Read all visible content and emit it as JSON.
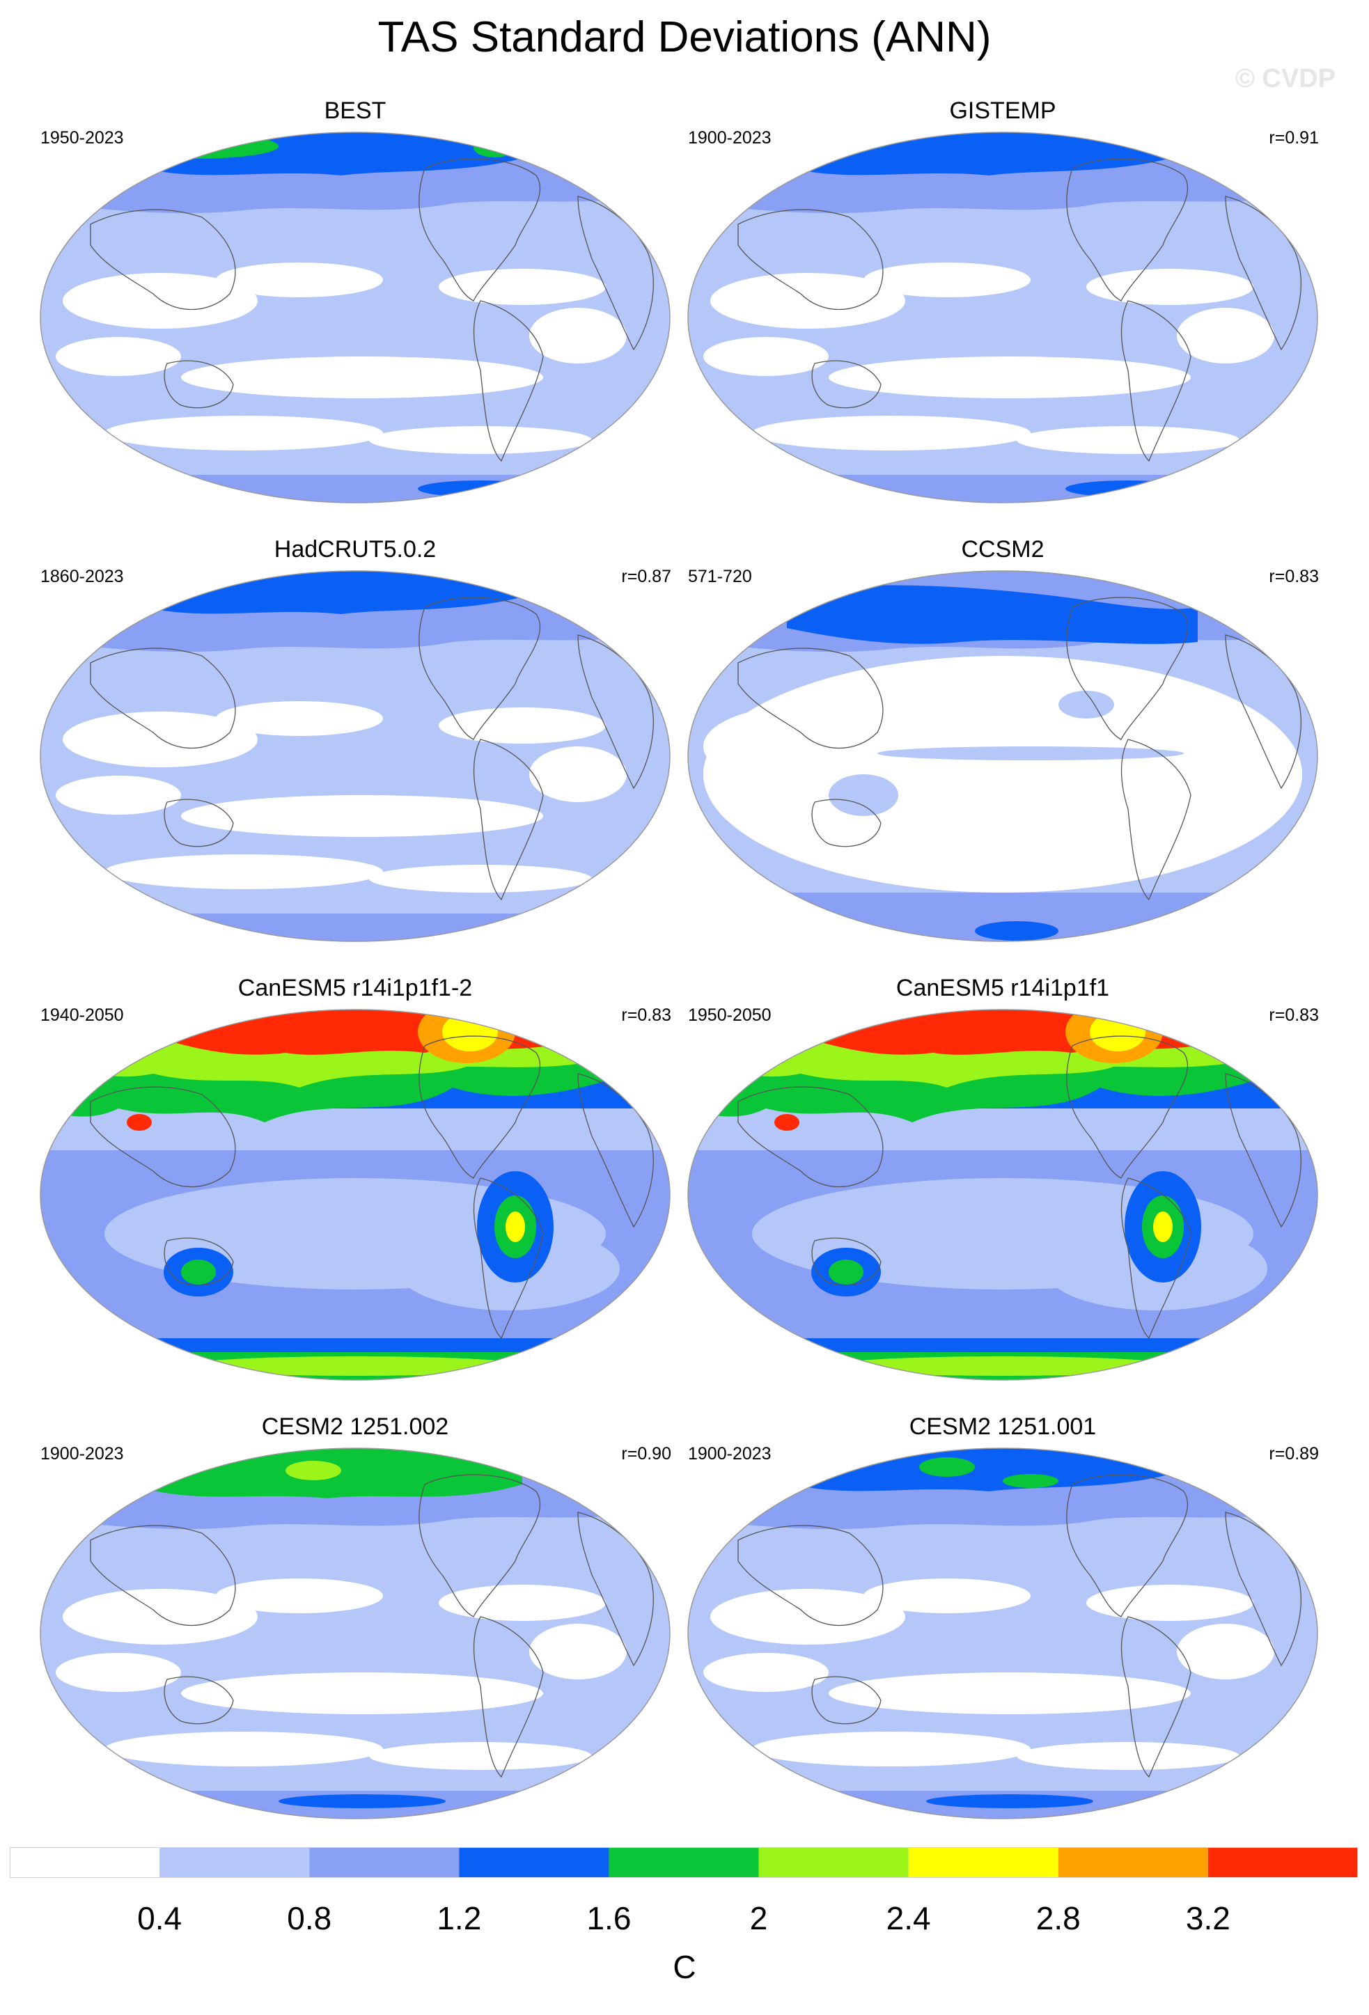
{
  "title": "TAS Standard Deviations (ANN)",
  "watermark": "© CVDP",
  "colors": {
    "levels": [
      "#ffffff",
      "#b4c7f8",
      "#8aa0f4",
      "#0a60f5",
      "#09c537",
      "#9cf51a",
      "#ffff00",
      "#ffa100",
      "#ff2a05"
    ],
    "land_outline": "#555555",
    "map_border": "#999999"
  },
  "colorbar": {
    "labels": [
      "0.4",
      "0.8",
      "1.2",
      "1.6",
      "2",
      "2.4",
      "2.8",
      "3.2"
    ],
    "units": "C"
  },
  "panels": [
    {
      "title": "BEST",
      "years": "1950-2023",
      "r": "",
      "pattern": "obs"
    },
    {
      "title": "GISTEMP",
      "years": "1900-2023",
      "r": "r=0.91",
      "pattern": "obs2"
    },
    {
      "title": "HadCRUT5.0.2",
      "years": "1860-2023",
      "r": "r=0.87",
      "pattern": "obs3"
    },
    {
      "title": "CCSM2",
      "years": "571-720",
      "r": "r=0.83",
      "pattern": "ccsm"
    },
    {
      "title": "CanESM5 r14i1p1f1-2",
      "years": "1940-2050",
      "r": "r=0.83",
      "pattern": "canesm"
    },
    {
      "title": "CanESM5 r14i1p1f1",
      "years": "1950-2050",
      "r": "r=0.83",
      "pattern": "canesm"
    },
    {
      "title": "CESM2 1251.002",
      "years": "1900-2023",
      "r": "r=0.90",
      "pattern": "cesm"
    },
    {
      "title": "CESM2 1251.001",
      "years": "1900-2023",
      "r": "r=0.89",
      "pattern": "cesm2"
    }
  ]
}
